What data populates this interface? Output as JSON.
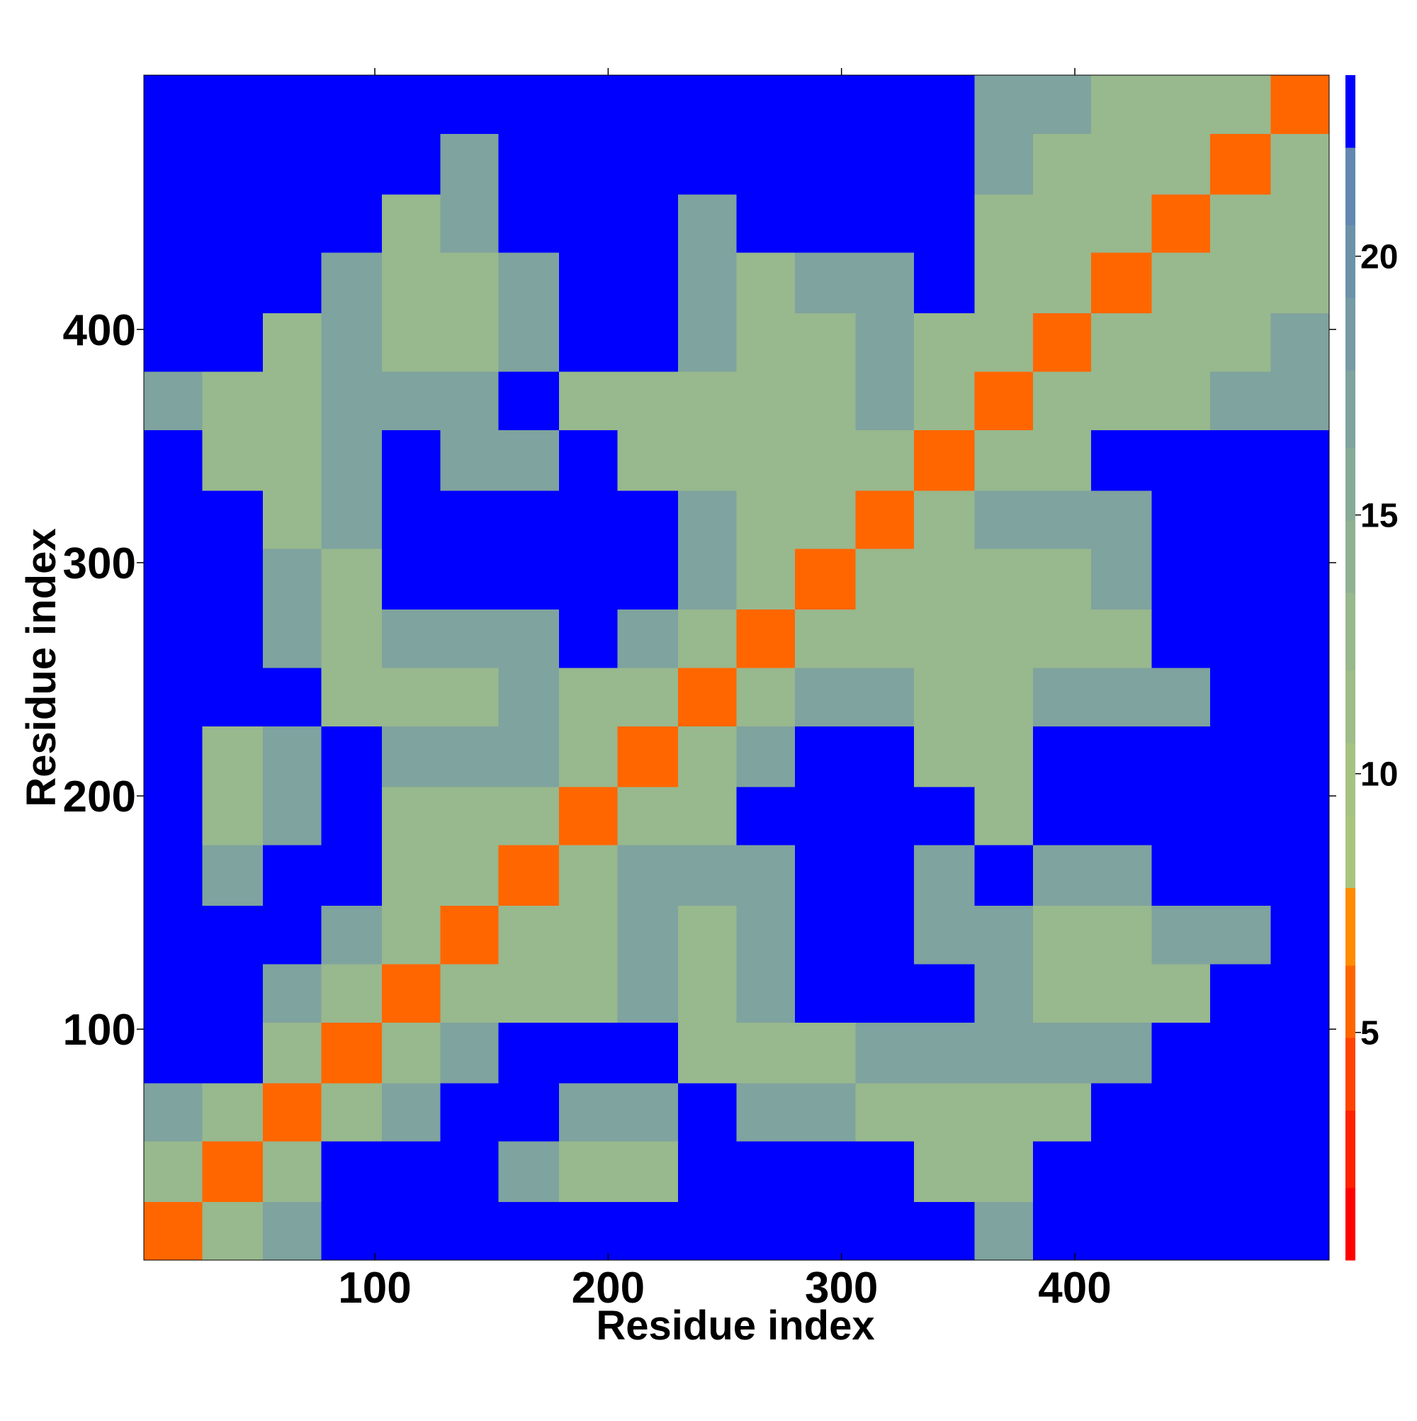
{
  "chart_data": {
    "type": "heatmap",
    "x_label": "Residue index",
    "y_label": "Residue index",
    "xbins": [
      1,
      26,
      52,
      77,
      103,
      128,
      153,
      179,
      204,
      230,
      255,
      280,
      306,
      331,
      357,
      382,
      407,
      433,
      458,
      484,
      509
    ],
    "ybins": [
      1,
      26,
      52,
      77,
      103,
      128,
      153,
      179,
      204,
      230,
      255,
      280,
      306,
      331,
      357,
      382,
      407,
      433,
      458,
      484,
      509
    ],
    "xlim": [
      1,
      509
    ],
    "ylim": [
      1,
      509
    ],
    "xticks": [
      100,
      200,
      300,
      400
    ],
    "yticks": [
      100,
      200,
      300,
      400
    ],
    "z": [
      [
        5,
        12,
        17,
        23,
        23,
        23,
        23,
        23,
        23,
        23,
        23,
        23,
        23,
        23,
        17,
        23,
        23,
        23,
        23,
        23
      ],
      [
        12,
        5,
        12,
        23,
        23,
        23,
        17,
        12,
        12,
        23,
        23,
        23,
        23,
        12,
        12,
        23,
        23,
        23,
        23,
        23
      ],
      [
        17,
        12,
        5,
        12,
        17,
        23,
        23,
        17,
        17,
        23,
        17,
        17,
        12,
        12,
        12,
        12,
        23,
        23,
        23,
        23
      ],
      [
        23,
        23,
        12,
        5,
        12,
        17,
        23,
        23,
        23,
        12,
        12,
        12,
        17,
        17,
        17,
        17,
        17,
        23,
        23,
        23
      ],
      [
        23,
        23,
        17,
        12,
        5,
        12,
        12,
        12,
        17,
        12,
        17,
        23,
        23,
        23,
        17,
        12,
        12,
        12,
        23,
        23
      ],
      [
        23,
        23,
        23,
        17,
        12,
        5,
        12,
        12,
        17,
        12,
        17,
        23,
        23,
        17,
        17,
        12,
        12,
        17,
        17,
        23
      ],
      [
        23,
        17,
        23,
        23,
        12,
        12,
        5,
        12,
        17,
        17,
        17,
        23,
        23,
        17,
        23,
        17,
        17,
        23,
        23,
        23
      ],
      [
        23,
        12,
        17,
        23,
        12,
        12,
        12,
        5,
        12,
        12,
        23,
        23,
        23,
        23,
        12,
        23,
        23,
        23,
        23,
        23
      ],
      [
        23,
        12,
        17,
        23,
        17,
        17,
        17,
        12,
        5,
        12,
        17,
        23,
        23,
        12,
        12,
        23,
        23,
        23,
        23,
        23
      ],
      [
        23,
        23,
        23,
        12,
        12,
        12,
        17,
        12,
        12,
        5,
        12,
        17,
        17,
        12,
        12,
        17,
        17,
        17,
        23,
        23
      ],
      [
        23,
        23,
        17,
        12,
        17,
        17,
        17,
        23,
        17,
        12,
        5,
        12,
        12,
        12,
        12,
        12,
        12,
        23,
        23,
        23
      ],
      [
        23,
        23,
        17,
        12,
        23,
        23,
        23,
        23,
        23,
        17,
        12,
        5,
        12,
        12,
        12,
        12,
        17,
        23,
        23,
        23
      ],
      [
        23,
        23,
        12,
        17,
        23,
        23,
        23,
        23,
        23,
        17,
        12,
        12,
        5,
        12,
        17,
        17,
        17,
        23,
        23,
        23
      ],
      [
        23,
        12,
        12,
        17,
        23,
        17,
        17,
        23,
        12,
        12,
        12,
        12,
        12,
        5,
        12,
        12,
        23,
        23,
        23,
        23
      ],
      [
        17,
        12,
        12,
        17,
        17,
        17,
        23,
        12,
        12,
        12,
        12,
        12,
        17,
        12,
        5,
        12,
        12,
        12,
        17,
        17
      ],
      [
        23,
        23,
        12,
        17,
        12,
        12,
        17,
        23,
        23,
        17,
        12,
        12,
        17,
        12,
        12,
        5,
        12,
        12,
        12,
        17
      ],
      [
        23,
        23,
        23,
        17,
        12,
        12,
        17,
        23,
        23,
        17,
        12,
        17,
        17,
        23,
        12,
        12,
        5,
        12,
        12,
        12
      ],
      [
        23,
        23,
        23,
        23,
        12,
        17,
        23,
        23,
        23,
        17,
        23,
        23,
        23,
        23,
        12,
        12,
        12,
        5,
        12,
        12
      ],
      [
        23,
        23,
        23,
        23,
        23,
        17,
        23,
        23,
        23,
        23,
        23,
        23,
        23,
        23,
        17,
        12,
        12,
        12,
        5,
        12
      ],
      [
        23,
        23,
        23,
        23,
        23,
        23,
        23,
        23,
        23,
        23,
        23,
        23,
        23,
        23,
        17,
        17,
        12,
        12,
        12,
        5
      ]
    ],
    "colorbar": {
      "levels": [
        0.6,
        2.0,
        3.5,
        4.9,
        6.3,
        7.8,
        9.2,
        10.6,
        12.0,
        13.5,
        14.9,
        16.3,
        17.8,
        19.2,
        20.6,
        22.1,
        23.5
      ],
      "colors": [
        "#ff0000",
        "#ff2200",
        "#ff4400",
        "#ff6600",
        "#ff8c00",
        "#a9c47f",
        "#a5c283",
        "#9fbd88",
        "#98b88d",
        "#90b292",
        "#88ab98",
        "#7fa39e",
        "#769ba4",
        "#6c92aa",
        "#6388b0",
        "#0000ff"
      ],
      "ticks": [
        5,
        10,
        15,
        20
      ]
    }
  }
}
